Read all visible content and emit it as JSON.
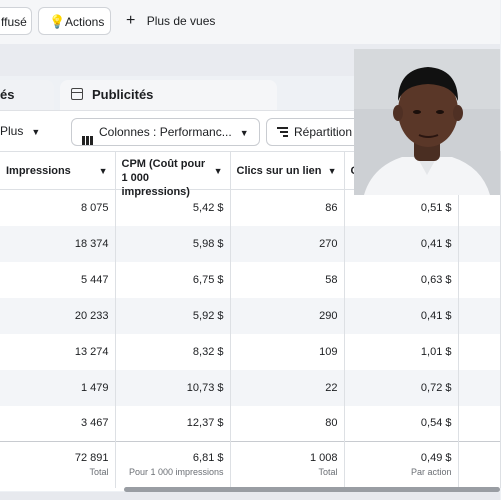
{
  "toolbar": {
    "diffuse_label": "ffusé",
    "actions_label": "Actions",
    "more_views_label": "Plus de vues"
  },
  "tabs": {
    "left_partial": "és",
    "ads": "Publicités"
  },
  "controls": {
    "plus": "Plus",
    "columns": "Colonnes : Performanc...",
    "breakdown": "Répartition"
  },
  "table": {
    "headers": [
      "Impressions",
      "CPM (Coût pour 1 000 impressions)",
      "Clics sur un lien",
      "C"
    ],
    "rows": [
      [
        "8 075",
        "5,42 $",
        "86",
        "0,51 $"
      ],
      [
        "18 374",
        "5,98 $",
        "270",
        "0,41 $"
      ],
      [
        "5 447",
        "6,75 $",
        "58",
        "0,63 $"
      ],
      [
        "20 233",
        "5,92 $",
        "290",
        "0,41 $"
      ],
      [
        "13 274",
        "8,32 $",
        "109",
        "1,01 $"
      ],
      [
        "1 479",
        "10,73 $",
        "22",
        "0,72 $"
      ],
      [
        "3 467",
        "12,37 $",
        "80",
        "0,54 $"
      ]
    ],
    "totals": [
      {
        "value": "72 891",
        "label": "Total"
      },
      {
        "value": "6,81 $",
        "label": "Pour 1 000 impressions"
      },
      {
        "value": "1 008",
        "label": "Total"
      },
      {
        "value": "0,49 $",
        "label": "Par action"
      }
    ]
  }
}
